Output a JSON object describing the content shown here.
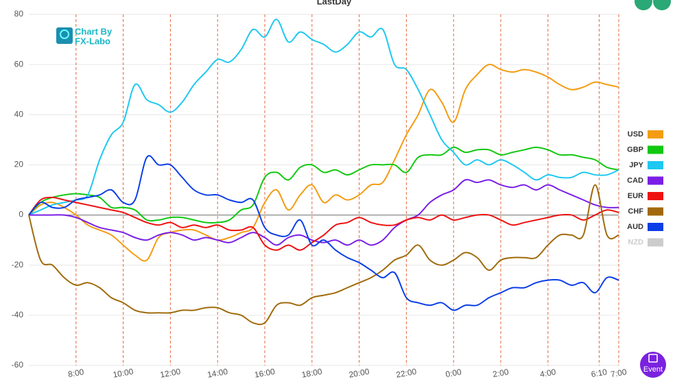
{
  "chart_data": {
    "type": "line",
    "title": "LastDay",
    "x": [
      0,
      0.5,
      1,
      1.5,
      2,
      2.5,
      3,
      3.5,
      4,
      4.5,
      5,
      5.5,
      6,
      6.5,
      7,
      7.5,
      8,
      8.5,
      9,
      9.5,
      10,
      10.5,
      11,
      11.5,
      12,
      12.5,
      13,
      13.5,
      14,
      14.5,
      15,
      15.5,
      16,
      16.5,
      17,
      17.5,
      18,
      18.5,
      19,
      19.5,
      20,
      20.5,
      21,
      21.5,
      22,
      22.5,
      23,
      23.5,
      24,
      24.5,
      25
    ],
    "xlim": [
      0,
      25
    ],
    "xticks": [
      {
        "value": 2,
        "label": "8:00"
      },
      {
        "value": 4,
        "label": "10:00"
      },
      {
        "value": 6,
        "label": "12:00"
      },
      {
        "value": 8,
        "label": "14:00"
      },
      {
        "value": 10,
        "label": "16:00"
      },
      {
        "value": 12,
        "label": "18:00"
      },
      {
        "value": 14,
        "label": "20:00"
      },
      {
        "value": 16,
        "label": "22:00"
      },
      {
        "value": 18,
        "label": "0:00"
      },
      {
        "value": 20,
        "label": "2:00"
      },
      {
        "value": 22,
        "label": "4:00"
      },
      {
        "value": 24.17,
        "label": "6:10"
      },
      {
        "value": 25,
        "label": "7:00"
      }
    ],
    "ylim": [
      -60,
      80
    ],
    "yticks": [
      -60,
      -40,
      -20,
      0,
      20,
      40,
      60,
      80
    ],
    "grid": true,
    "series": [
      {
        "name": "USD",
        "color": "#f39c12",
        "values": [
          0,
          4,
          5,
          3,
          0,
          -4,
          -6,
          -8,
          -12,
          -16,
          -18,
          -9,
          -7,
          -6,
          -6,
          -8,
          -10,
          -9,
          -7,
          -5,
          5,
          10,
          2,
          8,
          12,
          5,
          8,
          6,
          8,
          12,
          13,
          22,
          32,
          40,
          50,
          45,
          37,
          50,
          56,
          60,
          58,
          57,
          58,
          57,
          55,
          52,
          50,
          51,
          53,
          52,
          51
        ]
      },
      {
        "name": "GBP",
        "color": "#11c811",
        "values": [
          0,
          5,
          7,
          8,
          8.5,
          8,
          7,
          3,
          3,
          2,
          -2,
          -2,
          -1,
          -1,
          -2,
          -3,
          -3,
          -2,
          2,
          4,
          15,
          17,
          14,
          19,
          20,
          17,
          18,
          16,
          18,
          20,
          20,
          20,
          17,
          23,
          24,
          24,
          27,
          25,
          26,
          26,
          24,
          25,
          26,
          27,
          26,
          24,
          24,
          23,
          22,
          19,
          18
        ]
      },
      {
        "name": "JPY",
        "color": "#1ec8f0",
        "values": [
          0,
          2,
          4,
          5,
          6,
          8,
          22,
          32,
          37,
          52,
          46,
          44,
          41,
          45,
          52,
          57,
          62,
          61,
          66,
          74,
          71,
          78,
          69,
          73,
          70,
          68,
          65,
          68,
          73,
          71,
          74,
          60,
          58,
          50,
          40,
          30,
          25,
          20,
          22,
          20,
          22,
          20,
          17,
          14,
          16,
          15,
          15,
          17,
          16,
          16,
          18
        ]
      },
      {
        "name": "CAD",
        "color": "#7a1ee6",
        "values": [
          0,
          0,
          0,
          0,
          -1,
          -3,
          -5,
          -6,
          -7,
          -9,
          -10,
          -8,
          -7,
          -8,
          -10,
          -9,
          -10,
          -11,
          -9,
          -7,
          -9,
          -12,
          -9,
          -8,
          -10,
          -11,
          -10,
          -12,
          -10,
          -12,
          -10,
          -5,
          -2,
          0,
          5,
          8,
          10,
          14,
          13,
          14,
          12,
          11,
          12,
          10,
          12,
          10,
          8,
          6,
          4,
          3,
          3
        ]
      },
      {
        "name": "EUR",
        "color": "#ee1111",
        "values": [
          0,
          6,
          7,
          6,
          5,
          4,
          3,
          2,
          1,
          -1,
          -3,
          -4,
          -3,
          -5,
          -4,
          -5,
          -4,
          -6,
          -6,
          -5,
          -12,
          -14,
          -12,
          -14,
          -11,
          -8,
          -4,
          -3,
          -1,
          -3,
          -4,
          -4,
          -2,
          -1,
          -2,
          0,
          -2,
          -1,
          0,
          0,
          -2,
          -4,
          -3,
          -2,
          -1,
          0,
          0,
          -2,
          0,
          2,
          1
        ]
      },
      {
        "name": "CHF",
        "color": "#a06a0a",
        "values": [
          0,
          -18,
          -20,
          -25,
          -28,
          -27,
          -29,
          -33,
          -35,
          -38,
          -39,
          -39,
          -39,
          -38,
          -38,
          -37,
          -37,
          -39,
          -40,
          -43,
          -43,
          -36,
          -35,
          -36,
          -33,
          -32,
          -31,
          -29,
          -27,
          -25,
          -22,
          -18,
          -16,
          -12,
          -18,
          -20,
          -18,
          -15,
          -17,
          -22,
          -18,
          -17,
          -17,
          -17,
          -12,
          -8,
          -8,
          -8,
          12,
          -8,
          -8
        ]
      },
      {
        "name": "AUD",
        "color": "#0a3ee6",
        "values": [
          0,
          5,
          3,
          3,
          6,
          7,
          8,
          10,
          5,
          6,
          23,
          20,
          20,
          15,
          10,
          8,
          8,
          6,
          5,
          6,
          -5,
          -8,
          -8,
          -2,
          -12,
          -10,
          -14,
          -17,
          -19,
          -22,
          -25,
          -23,
          -33,
          -35,
          -36,
          -35,
          -38,
          -36,
          -36,
          -33,
          -31,
          -29,
          -29,
          -27,
          -26,
          -26,
          -28,
          -27,
          -31,
          -25,
          -26
        ]
      },
      {
        "name": "NZD",
        "color": "#cccccc",
        "visible": false,
        "values": [
          null,
          null,
          null,
          null,
          null,
          null,
          null,
          null,
          null,
          null,
          null,
          null,
          null,
          null,
          null,
          null,
          null,
          null,
          null,
          null,
          null,
          null,
          null,
          null,
          null,
          null,
          null,
          null,
          null,
          null,
          null,
          null,
          null,
          null,
          null,
          null,
          null,
          null,
          null,
          null,
          null,
          null,
          null,
          null,
          null,
          null,
          null,
          null,
          null,
          null,
          null
        ]
      }
    ]
  },
  "watermark": {
    "line1": "Chart By",
    "line2": "FX-Labo"
  },
  "button": {
    "event": "Event"
  }
}
